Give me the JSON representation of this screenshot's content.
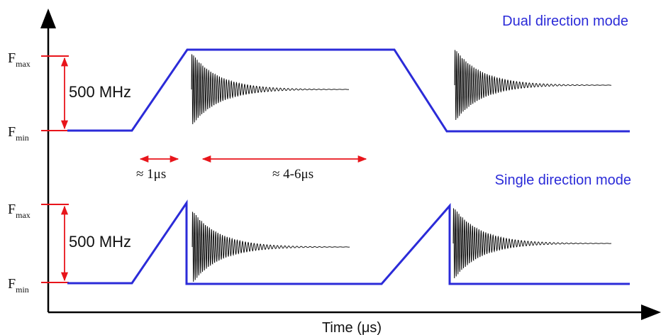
{
  "colors": {
    "axis": "#000000",
    "sweep": "#2b2bd8",
    "marker": "#e8151b",
    "mode_label": "#2b2bd8",
    "text": "#111111"
  },
  "axis": {
    "x_label": "Time (μs)"
  },
  "modes": {
    "dual": "Dual direction mode",
    "single": "Single direction mode"
  },
  "frequency_labels": {
    "top": {
      "fmax_base": "F",
      "fmax_sub": "max",
      "fmin_base": "F",
      "fmin_sub": "min",
      "span": "500 MHz"
    },
    "bottom": {
      "fmax_base": "F",
      "fmax_sub": "max",
      "fmin_base": "F",
      "fmin_sub": "min",
      "span": "500 MHz"
    }
  },
  "durations": {
    "ramp": "≈ 1μs",
    "hold": "≈ 4-6μs"
  }
}
